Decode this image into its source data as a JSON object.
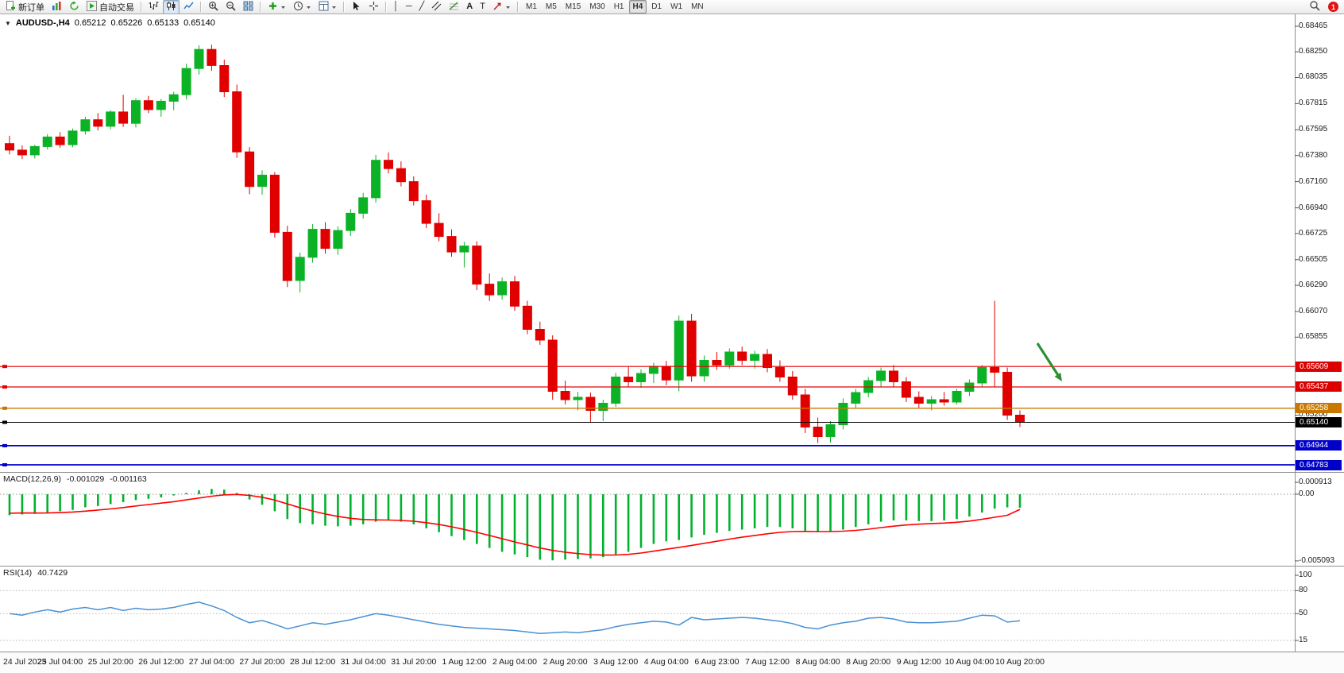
{
  "toolbar": {
    "new_order_label": "新订单",
    "autotrade_label": "自动交易",
    "timeframes": [
      "M1",
      "M5",
      "M15",
      "M30",
      "H1",
      "H4",
      "D1",
      "W1",
      "MN"
    ],
    "active_timeframe": "H4",
    "notification_count": "1",
    "icons": [
      "new-order-doc-plus",
      "chart-bars",
      "refresh",
      "autotrade-play",
      "bar-chart",
      "candlestick-chart",
      "line-chart",
      "zoom-in",
      "zoom-out",
      "tile-windows",
      "add-indicator",
      "period-clock",
      "cursor",
      "crosshair",
      "vertical-line",
      "horizontal-line",
      "trendline",
      "equidistant-channel",
      "fibonacci",
      "text",
      "text-label",
      "arrow-tool",
      "search"
    ]
  },
  "chart_header": {
    "symbol": "AUDUSD-,H4",
    "open": "0.65212",
    "high": "0.65226",
    "low": "0.65133",
    "close": "0.65140"
  },
  "price_axis": {
    "ticks": [
      "0.68465",
      "0.68250",
      "0.68035",
      "0.67815",
      "0.67595",
      "0.67380",
      "0.67160",
      "0.66940",
      "0.66725",
      "0.66505",
      "0.66290",
      "0.66070",
      "0.65855",
      "0.65200"
    ],
    "badges": [
      {
        "text": "0.65609",
        "price": 0.65609,
        "color": "#dd0000"
      },
      {
        "text": "0.65437",
        "price": 0.65437,
        "color": "#dd0000"
      },
      {
        "text": "0.65258",
        "price": 0.65258,
        "color": "#c87800"
      },
      {
        "text": "0.65140",
        "price": 0.6514,
        "color": "#000000"
      },
      {
        "text": "0.64944",
        "price": 0.64944,
        "color": "#0000c8"
      },
      {
        "text": "0.64783",
        "price": 0.64783,
        "color": "#0000c8"
      }
    ]
  },
  "indicator_labels": {
    "macd": {
      "name": "MACD(12,26,9)",
      "value": "-0.001029",
      "signal": "-0.001163",
      "axis": [
        "0.000913",
        "0.00",
        "-0.005093"
      ]
    },
    "rsi": {
      "name": "RSI(14)",
      "value": "40.7429",
      "axis": [
        "100",
        "80",
        "50",
        "15"
      ]
    }
  },
  "time_axis": [
    "24 Jul 2023",
    "25 Jul 04:00",
    "25 Jul 20:00",
    "26 Jul 12:00",
    "27 Jul 04:00",
    "27 Jul 20:00",
    "28 Jul 12:00",
    "31 Jul 04:00",
    "31 Jul 20:00",
    "1 Aug 12:00",
    "2 Aug 04:00",
    "2 Aug 20:00",
    "3 Aug 12:00",
    "4 Aug 04:00",
    "6 Aug 23:00",
    "7 Aug 12:00",
    "8 Aug 04:00",
    "8 Aug 20:00",
    "9 Aug 12:00",
    "10 Aug 04:00",
    "10 Aug 20:00"
  ],
  "chart_data": [
    {
      "type": "candlestick",
      "title": "AUDUSD- H4",
      "up_color": "#0cb226",
      "down_color": "#e00000",
      "ylim": [
        0.6468,
        0.6856
      ],
      "x_labels_every": 4,
      "hlines": [
        {
          "price": 0.65609,
          "color": "#e60000",
          "width": 1.2
        },
        {
          "price": 0.65437,
          "color": "#e60000",
          "width": 1.2
        },
        {
          "price": 0.65258,
          "color": "#c87800",
          "width": 1.4
        },
        {
          "price": 0.6514,
          "color": "#000000",
          "width": 1.0,
          "role": "bid-price"
        },
        {
          "price": 0.64944,
          "color": "#0000cc",
          "width": 1.8
        },
        {
          "price": 0.64783,
          "color": "#0000cc",
          "width": 1.8
        }
      ],
      "annotation": {
        "type": "arrow",
        "color": "#2f8f2f",
        "from_price": 0.6569,
        "to_price": 0.6543
      },
      "candles": [
        [
          0.6748,
          0.67545,
          0.6739,
          0.67425
        ],
        [
          0.67425,
          0.67465,
          0.6735,
          0.67385
        ],
        [
          0.67385,
          0.6747,
          0.67355,
          0.67455
        ],
        [
          0.67455,
          0.6756,
          0.6743,
          0.67535
        ],
        [
          0.67535,
          0.67575,
          0.67445,
          0.6747
        ],
        [
          0.6747,
          0.67605,
          0.6745,
          0.67585
        ],
        [
          0.67585,
          0.67705,
          0.67555,
          0.6768
        ],
        [
          0.6768,
          0.67735,
          0.6759,
          0.67625
        ],
        [
          0.67625,
          0.6776,
          0.676,
          0.67745
        ],
        [
          0.67745,
          0.6789,
          0.6762,
          0.6765
        ],
        [
          0.6765,
          0.6786,
          0.67615,
          0.6784
        ],
        [
          0.6784,
          0.6788,
          0.67735,
          0.67765
        ],
        [
          0.67765,
          0.67855,
          0.67705,
          0.67835
        ],
        [
          0.67835,
          0.67915,
          0.6776,
          0.6789
        ],
        [
          0.6789,
          0.6815,
          0.6785,
          0.6811
        ],
        [
          0.6811,
          0.68305,
          0.6806,
          0.6827
        ],
        [
          0.6827,
          0.6831,
          0.6809,
          0.68135
        ],
        [
          0.68135,
          0.68185,
          0.6787,
          0.67915
        ],
        [
          0.67915,
          0.67975,
          0.6736,
          0.6741
        ],
        [
          0.6741,
          0.6745,
          0.67055,
          0.6712
        ],
        [
          0.6712,
          0.67255,
          0.6705,
          0.67215
        ],
        [
          0.67215,
          0.6724,
          0.6669,
          0.66735
        ],
        [
          0.66735,
          0.6679,
          0.66275,
          0.6633
        ],
        [
          0.6633,
          0.66565,
          0.6623,
          0.66525
        ],
        [
          0.66525,
          0.66805,
          0.6648,
          0.6676
        ],
        [
          0.6676,
          0.6682,
          0.66555,
          0.666
        ],
        [
          0.666,
          0.66785,
          0.66545,
          0.6675
        ],
        [
          0.6675,
          0.6693,
          0.66705,
          0.66895
        ],
        [
          0.66895,
          0.67065,
          0.6685,
          0.67025
        ],
        [
          0.67025,
          0.67385,
          0.66985,
          0.6734
        ],
        [
          0.6734,
          0.67405,
          0.6723,
          0.6727
        ],
        [
          0.6727,
          0.6733,
          0.6712,
          0.6716
        ],
        [
          0.6716,
          0.67205,
          0.6696,
          0.67
        ],
        [
          0.67,
          0.6705,
          0.6677,
          0.6681
        ],
        [
          0.6681,
          0.66895,
          0.6666,
          0.667
        ],
        [
          0.667,
          0.6676,
          0.6653,
          0.6657
        ],
        [
          0.6657,
          0.66655,
          0.6644,
          0.6662
        ],
        [
          0.6662,
          0.6666,
          0.6625,
          0.663
        ],
        [
          0.663,
          0.6639,
          0.6616,
          0.6621
        ],
        [
          0.6621,
          0.66355,
          0.6617,
          0.6632
        ],
        [
          0.6632,
          0.6637,
          0.66075,
          0.66115
        ],
        [
          0.66115,
          0.6616,
          0.6588,
          0.6592
        ],
        [
          0.6592,
          0.65985,
          0.6579,
          0.6583
        ],
        [
          0.6583,
          0.6587,
          0.6533,
          0.654
        ],
        [
          0.654,
          0.6549,
          0.6529,
          0.6533
        ],
        [
          0.6533,
          0.65395,
          0.6524,
          0.6535
        ],
        [
          0.6535,
          0.6539,
          0.6514,
          0.6524
        ],
        [
          0.6524,
          0.6533,
          0.6515,
          0.653
        ],
        [
          0.653,
          0.65555,
          0.6527,
          0.6552
        ],
        [
          0.6552,
          0.6561,
          0.6544,
          0.6548
        ],
        [
          0.6548,
          0.65585,
          0.6543,
          0.6555
        ],
        [
          0.6555,
          0.6564,
          0.6547,
          0.6561
        ],
        [
          0.6561,
          0.65655,
          0.6545,
          0.65495
        ],
        [
          0.65495,
          0.66035,
          0.654,
          0.6599
        ],
        [
          0.6599,
          0.6605,
          0.6548,
          0.6553
        ],
        [
          0.6553,
          0.657,
          0.6548,
          0.6566
        ],
        [
          0.6566,
          0.6573,
          0.6558,
          0.6562
        ],
        [
          0.6562,
          0.6576,
          0.6559,
          0.6573
        ],
        [
          0.6573,
          0.65775,
          0.6562,
          0.6566
        ],
        [
          0.6566,
          0.6574,
          0.6559,
          0.6571
        ],
        [
          0.6571,
          0.65755,
          0.6556,
          0.656
        ],
        [
          0.656,
          0.6566,
          0.6548,
          0.6552
        ],
        [
          0.6552,
          0.6557,
          0.6533,
          0.6537
        ],
        [
          0.6537,
          0.6542,
          0.6505,
          0.651
        ],
        [
          0.651,
          0.6518,
          0.64965,
          0.6502
        ],
        [
          0.6502,
          0.6515,
          0.6497,
          0.6512
        ],
        [
          0.6512,
          0.6534,
          0.6508,
          0.653
        ],
        [
          0.653,
          0.6542,
          0.6526,
          0.6539
        ],
        [
          0.6539,
          0.6552,
          0.6535,
          0.6549
        ],
        [
          0.6549,
          0.656,
          0.6544,
          0.6557
        ],
        [
          0.6557,
          0.6562,
          0.6544,
          0.6548
        ],
        [
          0.6548,
          0.6552,
          0.6531,
          0.6535
        ],
        [
          0.6535,
          0.654,
          0.6526,
          0.653
        ],
        [
          0.653,
          0.6536,
          0.6524,
          0.6533
        ],
        [
          0.6533,
          0.65395,
          0.6528,
          0.6531
        ],
        [
          0.6531,
          0.6542,
          0.6529,
          0.654
        ],
        [
          0.654,
          0.655,
          0.6536,
          0.6547
        ],
        [
          0.6547,
          0.6562,
          0.6544,
          0.656
        ],
        [
          0.656,
          0.6616,
          0.6544,
          0.6556
        ],
        [
          0.6556,
          0.656,
          0.6516,
          0.652
        ],
        [
          0.652,
          0.6524,
          0.651,
          0.6514
        ]
      ]
    },
    {
      "type": "bar",
      "name": "MACD(12,26,9)",
      "histogram_color": "#00b22d",
      "signal_color": "#ff0000",
      "ylim": [
        -0.005093,
        0.000913
      ],
      "current_values": [
        -0.001029,
        -0.001163
      ],
      "histogram": [
        -0.0016,
        -0.00155,
        -0.0015,
        -0.0014,
        -0.0013,
        -0.0012,
        -0.001,
        -0.0009,
        -0.00075,
        -0.0006,
        -0.00045,
        -0.00035,
        -0.00025,
        -0.0001,
        0.0001,
        0.0003,
        0.0004,
        0.00035,
        0.0001,
        -0.0004,
        -0.0008,
        -0.0013,
        -0.0019,
        -0.0022,
        -0.0023,
        -0.0024,
        -0.00245,
        -0.0024,
        -0.0023,
        -0.0021,
        -0.002,
        -0.0021,
        -0.0023,
        -0.0026,
        -0.0029,
        -0.0032,
        -0.0035,
        -0.0038,
        -0.0041,
        -0.0044,
        -0.0046,
        -0.0048,
        -0.005,
        -0.00505,
        -0.005,
        -0.00495,
        -0.0049,
        -0.0048,
        -0.0046,
        -0.0044,
        -0.0041,
        -0.0038,
        -0.0036,
        -0.0035,
        -0.0033,
        -0.0031,
        -0.00295,
        -0.0028,
        -0.0027,
        -0.0026,
        -0.0025,
        -0.0025,
        -0.0026,
        -0.0028,
        -0.0029,
        -0.00285,
        -0.0027,
        -0.0025,
        -0.0023,
        -0.0021,
        -0.002,
        -0.002,
        -0.00205,
        -0.00205,
        -0.002,
        -0.0019,
        -0.0017,
        -0.0014,
        -0.0011,
        -0.001,
        -0.00103
      ],
      "signal_line": [
        -0.00145,
        -0.00143,
        -0.00144,
        -0.00143,
        -0.0014,
        -0.00136,
        -0.00129,
        -0.00121,
        -0.00112,
        -0.00102,
        -0.0009,
        -0.00079,
        -0.00068,
        -0.00057,
        -0.00043,
        -0.00029,
        -0.00015,
        -5e-05,
        -2e-05,
        -9e-05,
        -0.00023,
        -0.00045,
        -0.00074,
        -0.00103,
        -0.00128,
        -0.00151,
        -0.00169,
        -0.00184,
        -0.00193,
        -0.00196,
        -0.00197,
        -0.002,
        -0.00206,
        -0.00217,
        -0.00231,
        -0.00249,
        -0.00269,
        -0.00291,
        -0.00315,
        -0.0034,
        -0.00364,
        -0.00387,
        -0.0041,
        -0.00429,
        -0.00443,
        -0.00453,
        -0.00461,
        -0.00465,
        -0.00464,
        -0.00459,
        -0.00449,
        -0.00435,
        -0.0042,
        -0.00406,
        -0.00391,
        -0.00375,
        -0.00359,
        -0.00343,
        -0.00328,
        -0.00315,
        -0.00302,
        -0.00291,
        -0.00285,
        -0.00284,
        -0.00285,
        -0.00285,
        -0.00282,
        -0.00276,
        -0.00267,
        -0.00255,
        -0.00244,
        -0.00235,
        -0.00229,
        -0.00224,
        -0.0022,
        -0.00214,
        -0.00205,
        -0.00192,
        -0.00176,
        -0.00161,
        -0.00116
      ]
    },
    {
      "type": "line",
      "name": "RSI(14)",
      "line_color": "#4a90d2",
      "ylim": [
        0,
        100
      ],
      "levels": [
        80,
        50,
        15
      ],
      "current": 40.7429,
      "values": [
        50,
        48,
        52,
        55,
        52,
        56,
        58,
        55,
        58,
        54,
        57,
        55,
        56,
        58,
        62,
        65,
        60,
        54,
        45,
        38,
        41,
        36,
        30,
        34,
        38,
        36,
        39,
        42,
        46,
        50,
        48,
        45,
        42,
        39,
        36,
        34,
        32,
        31,
        30,
        29,
        28,
        26,
        24,
        25,
        26,
        25,
        27,
        29,
        33,
        36,
        38,
        40,
        39,
        35,
        45,
        42,
        43,
        44,
        45,
        44,
        42,
        40,
        37,
        32,
        30,
        35,
        38,
        40,
        44,
        45,
        43,
        39,
        38,
        38,
        39,
        40,
        44,
        48,
        47,
        39,
        40.74
      ]
    }
  ]
}
